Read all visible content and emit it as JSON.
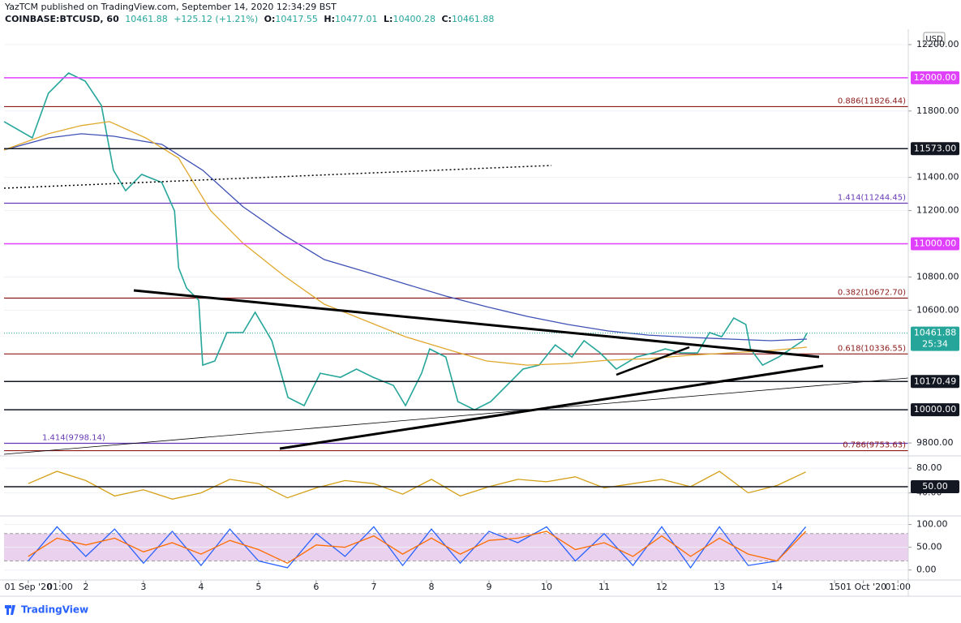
{
  "header": {
    "byline": "YazTCM published on TradingView.com, September 14, 2020 12:34:29 BST",
    "symbol": "COINBASE:BTCUSD, 60",
    "last": "10461.88",
    "change": "+125.12 (+1.21%)",
    "ohlc": [
      {
        "label": "O:",
        "value": "10417.55"
      },
      {
        "label": "H:",
        "value": "10477.01"
      },
      {
        "label": "L:",
        "value": "10400.28"
      },
      {
        "label": "C:",
        "value": "10461.88"
      }
    ],
    "currency": "USD"
  },
  "footer": {
    "logo": "TradingView"
  },
  "chart_data": [
    {
      "type": "line",
      "grid": true,
      "xlim": [
        0.58,
        16.28
      ],
      "xticks": [
        {
          "value": 1,
          "label": "01 Sep '20"
        },
        {
          "value": 1.55,
          "label": "01:00"
        },
        2,
        3,
        4,
        5,
        6,
        7,
        8,
        9,
        10,
        11,
        12,
        13,
        14,
        15,
        {
          "value": 15.5,
          "label": "01 Oct '20"
        },
        {
          "value": 16.1,
          "label": "01:00"
        }
      ],
      "ylim": [
        9732,
        12283
      ],
      "yticks": [
        {
          "value": 9800,
          "label": "9800.00"
        },
        {
          "value": 10600,
          "label": "10600.00"
        },
        {
          "value": 10800,
          "label": "10800.00"
        },
        {
          "value": 11200,
          "label": "11200.00"
        },
        {
          "value": 11400,
          "label": "11400.00"
        },
        {
          "value": 11800,
          "label": "11800.00"
        },
        {
          "value": 12200,
          "label": "12200.00"
        }
      ],
      "series": [
        {
          "color": "#26a69a",
          "x": [
            0.58,
            1.07,
            1.35,
            1.7,
            1.99,
            2.27,
            2.48,
            2.69,
            2.97,
            3.32,
            3.54,
            3.61,
            3.75,
            3.96,
            4.03,
            4.24,
            4.45,
            4.73,
            4.94,
            5.23,
            5.51,
            5.79,
            6.07,
            6.42,
            6.7,
            6.99,
            7.34,
            7.55,
            7.83,
            7.97,
            8.25,
            8.46,
            8.75,
            9.03,
            9.31,
            9.59,
            9.87,
            10.15,
            10.44,
            10.65,
            10.93,
            11.21,
            11.56,
            11.85,
            12.06,
            12.34,
            12.62,
            12.83,
            13.04,
            13.25,
            13.46,
            13.54,
            13.75,
            14.03,
            14.24,
            14.45,
            14.52
          ],
          "values": [
            11736,
            11638,
            11907,
            12029,
            11980,
            11834,
            11443,
            11320,
            11418,
            11369,
            11198,
            10856,
            10733,
            10660,
            10269,
            10294,
            10465,
            10465,
            10587,
            10416,
            10074,
            10025,
            10220,
            10196,
            10245,
            10196,
            10147,
            10025,
            10220,
            10367,
            10318,
            10049,
            10000,
            10049,
            10147,
            10245,
            10269,
            10391,
            10318,
            10416,
            10343,
            10245,
            10318,
            10343,
            10367,
            10343,
            10343,
            10465,
            10440,
            10553,
            10514,
            10367,
            10269,
            10318,
            10367,
            10416,
            10461.88
          ]
        },
        {
          "color": "#3f51b5",
          "x": [
            0.58,
            1.35,
            1.92,
            2.48,
            3.32,
            4.03,
            4.73,
            5.44,
            6.14,
            6.85,
            7.55,
            8.25,
            8.96,
            9.66,
            10.37,
            11.07,
            11.77,
            12.48,
            13.18,
            13.89,
            14.52
          ],
          "values": [
            11565,
            11638,
            11663,
            11648,
            11599,
            11443,
            11223,
            11052,
            10905,
            10832,
            10758,
            10685,
            10621,
            10563,
            10514,
            10475,
            10450,
            10436,
            10426,
            10416,
            10426
          ]
        },
        {
          "color": "#e0a82e",
          "x": [
            0.58,
            1.35,
            1.92,
            2.41,
            3.04,
            3.61,
            4.17,
            4.73,
            5.44,
            6.14,
            6.85,
            7.55,
            8.25,
            8.96,
            9.66,
            10.37,
            11.07,
            11.77,
            12.48,
            13.18,
            13.89,
            14.52
          ],
          "values": [
            11565,
            11663,
            11712,
            11736,
            11638,
            11516,
            11198,
            11003,
            10807,
            10636,
            10538,
            10440,
            10367,
            10294,
            10269,
            10279,
            10299,
            10308,
            10328,
            10343,
            10357,
            10377
          ]
        }
      ],
      "levels": [
        {
          "value": 12000,
          "label": "12000.00",
          "color": "#e040fb"
        },
        {
          "value": 11573,
          "label": "11573.00",
          "color": "#131722"
        },
        {
          "value": 11000,
          "label": "11000.00",
          "color": "#e040fb"
        },
        {
          "value": 10170.49,
          "label": "10170.49",
          "color": "#131722"
        },
        {
          "value": 10000,
          "label": "10000.00",
          "color": "#131722"
        }
      ],
      "fibs": [
        {
          "value": 11826.44,
          "label": "0.886(11826.44)",
          "color": "#8b1a1a",
          "side": "right"
        },
        {
          "value": 11244.45,
          "label": "1.414(11244.45)",
          "color": "#673ab7",
          "side": "right"
        },
        {
          "value": 10672.7,
          "label": "0.382(10672.70)",
          "color": "#8b1a1a",
          "side": "right"
        },
        {
          "value": 10336.55,
          "label": "0.618(10336.55)",
          "color": "#8b1a1a",
          "side": "right"
        },
        {
          "value": 9798.14,
          "label": "1.414(9798.14)",
          "color": "#673ab7",
          "side": "left"
        },
        {
          "value": 9753.63,
          "label": "0.786(9753.63)",
          "color": "#8b1a1a",
          "side": "right"
        }
      ],
      "last": {
        "value": 10461.88,
        "label": "10461.88",
        "countdown": "25:34",
        "color": "#26a69a"
      }
    },
    {
      "type": "line",
      "grid": true,
      "xlim": [
        0.58,
        16.28
      ],
      "ylim": [
        8,
        96
      ],
      "yticks": [
        {
          "value": 80,
          "label": "80.00"
        },
        {
          "value": 40,
          "label": "40.00"
        }
      ],
      "series": [
        {
          "color": "#d4a017",
          "x": [
            1,
            1.5,
            2,
            2.5,
            3,
            3.5,
            4,
            4.5,
            5,
            5.5,
            6,
            6.5,
            7,
            7.5,
            8,
            8.5,
            9,
            9.5,
            10,
            10.5,
            11,
            11.5,
            12,
            12.5,
            13,
            13.5,
            14,
            14.5
          ],
          "values": [
            55,
            75,
            60,
            35,
            45,
            30,
            40,
            62,
            55,
            32,
            48,
            60,
            55,
            38,
            62,
            35,
            50,
            62,
            58,
            66,
            48,
            55,
            62,
            50,
            75,
            40,
            52,
            74
          ]
        }
      ],
      "levels": [
        {
          "value": 50,
          "label": "50.00",
          "color": "#131722"
        }
      ]
    },
    {
      "type": "line",
      "grid": true,
      "xlim": [
        0.58,
        16.28
      ],
      "ylim": [
        -18.3,
        111.7
      ],
      "yticks": [
        {
          "value": 100,
          "label": "100.00"
        },
        {
          "value": 50,
          "label": "50.00"
        },
        {
          "value": 0,
          "label": "0.00"
        }
      ],
      "band": [
        20,
        80
      ],
      "band_color": "#e1bee7",
      "series": [
        {
          "color": "#2962ff",
          "x": [
            1,
            1.5,
            2,
            2.5,
            3,
            3.5,
            4,
            4.5,
            5,
            5.5,
            6,
            6.5,
            7,
            7.5,
            8,
            8.5,
            9,
            9.5,
            10,
            10.5,
            11,
            11.5,
            12,
            12.5,
            13,
            13.5,
            14,
            14.5
          ],
          "values": [
            20,
            95,
            30,
            90,
            15,
            85,
            10,
            90,
            20,
            5,
            80,
            30,
            95,
            10,
            90,
            15,
            85,
            60,
            95,
            20,
            80,
            10,
            95,
            5,
            95,
            10,
            20,
            95
          ]
        },
        {
          "color": "#ff6d00",
          "x": [
            1,
            1.5,
            2,
            2.5,
            3,
            3.5,
            4,
            4.5,
            5,
            5.5,
            6,
            6.5,
            7,
            7.5,
            8,
            8.5,
            9,
            9.5,
            10,
            10.5,
            11,
            11.5,
            12,
            12.5,
            13,
            13.5,
            14,
            14.5
          ],
          "values": [
            30,
            70,
            55,
            70,
            40,
            60,
            35,
            65,
            45,
            15,
            55,
            50,
            75,
            35,
            70,
            35,
            65,
            70,
            85,
            45,
            60,
            30,
            75,
            30,
            70,
            35,
            20,
            85
          ]
        }
      ]
    }
  ]
}
